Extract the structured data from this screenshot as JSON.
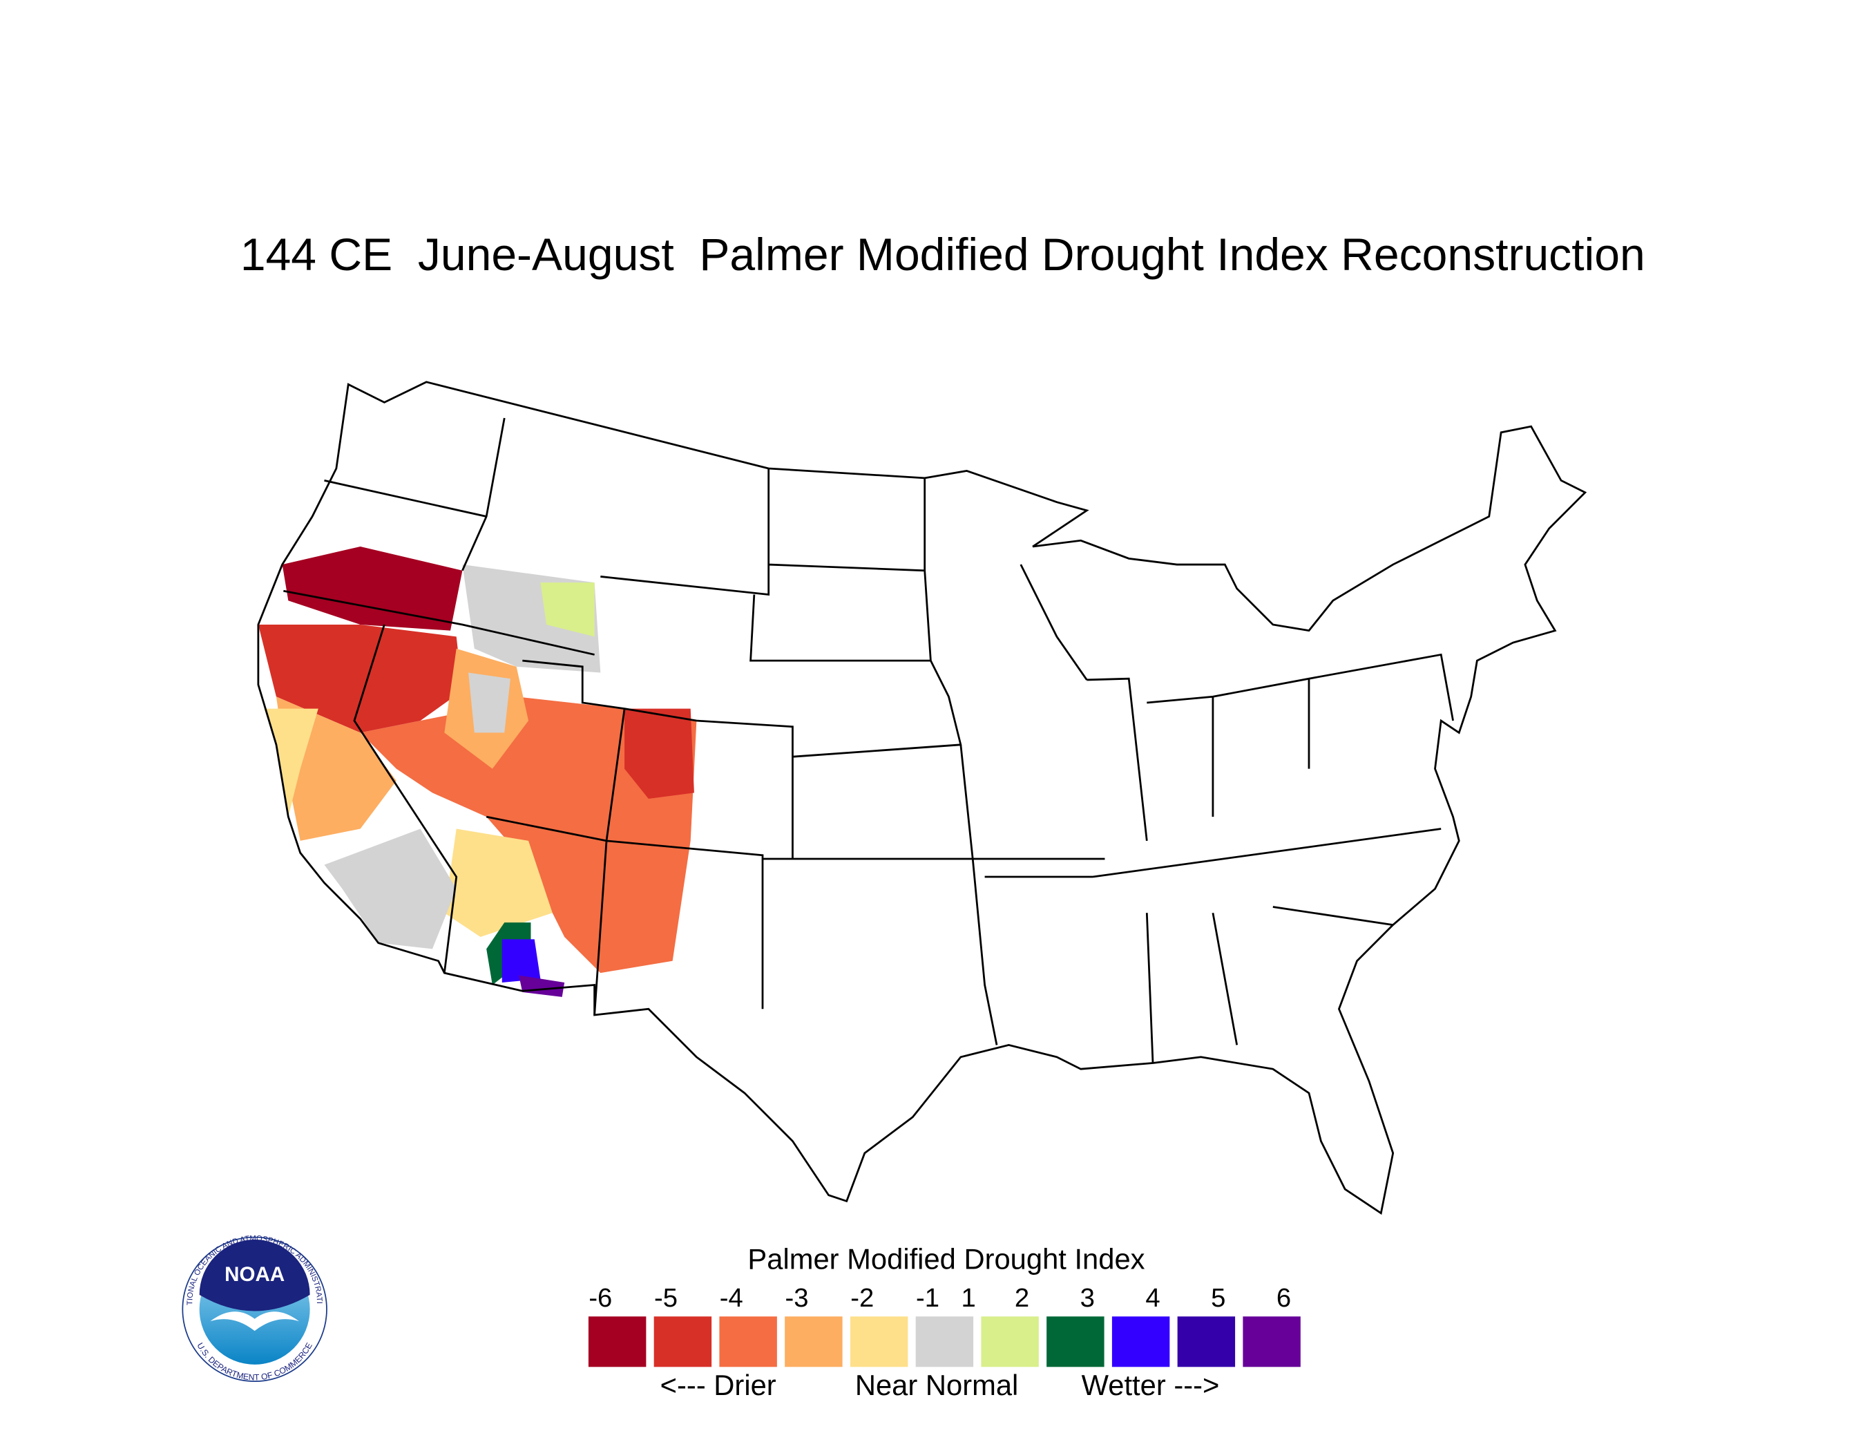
{
  "title": "144 CE  June-August  Palmer Modified Drought Index Reconstruction",
  "legend": {
    "title": "Palmer Modified Drought Index",
    "ticks": [
      -6,
      -5,
      -4,
      -3,
      -2,
      -1,
      1,
      2,
      3,
      4,
      5,
      6
    ],
    "colors": [
      "#a50021",
      "#d73027",
      "#f46d43",
      "#fdae61",
      "#fee08b",
      "#d3d3d3",
      "#d9ef8b",
      "#006837",
      "#3300ff",
      "#3300aa",
      "#660099"
    ],
    "labels": [
      "<--- Drier",
      "Near Normal",
      "Wetter --->"
    ]
  },
  "logo": {
    "name": "NOAA",
    "agency": "NATIONAL OCEANIC AND ATMOSPHERIC ADMINISTRATION",
    "department": "U.S. DEPARTMENT OF COMMERCE"
  }
}
